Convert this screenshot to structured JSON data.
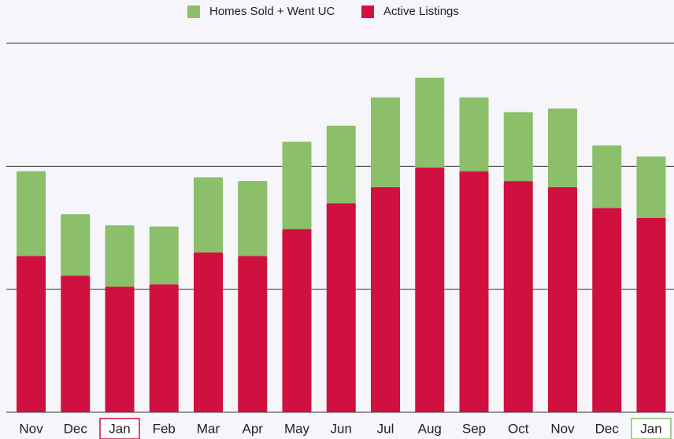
{
  "chart_data": {
    "type": "stacked-bar",
    "categories": [
      "Nov",
      "Dec",
      "Jan",
      "Feb",
      "Mar",
      "Apr",
      "May",
      "Jun",
      "Jul",
      "Aug",
      "Sep",
      "Oct",
      "Nov",
      "Dec",
      "Jan"
    ],
    "series": [
      {
        "name": "Homes Sold + Went UC",
        "color": "#8bbf6a",
        "values": [
          0.69,
          0.5,
          0.5,
          0.47,
          0.61,
          0.61,
          0.71,
          0.63,
          0.73,
          0.73,
          0.6,
          0.56,
          0.64,
          0.51,
          0.5
        ]
      },
      {
        "name": "Active Listings",
        "color": "#d0113f",
        "values": [
          1.27,
          1.11,
          1.02,
          1.04,
          1.3,
          1.27,
          1.49,
          1.7,
          1.83,
          1.99,
          1.96,
          1.88,
          1.83,
          1.66,
          1.58
        ]
      }
    ],
    "ylim": [
      0,
      3
    ],
    "yticks": [
      0,
      1,
      2,
      3
    ],
    "grid": true
  }
}
